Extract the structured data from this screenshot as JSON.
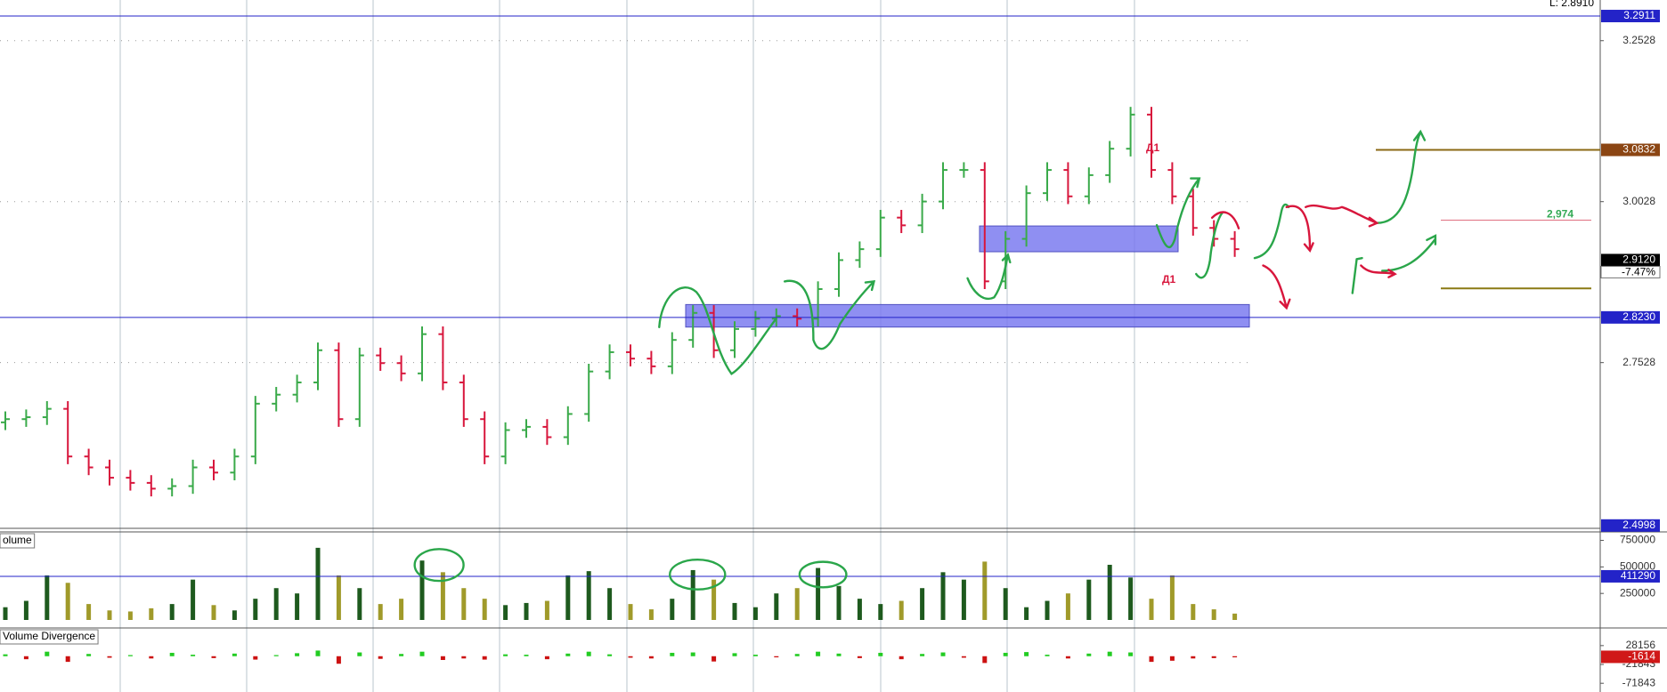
{
  "top_label": "L: 2.8910",
  "annotations": [
    "Д1",
    "Д1"
  ],
  "chart_data": [
    {
      "type": "ohlc",
      "open": [
        2.66,
        2.665,
        2.668,
        2.681,
        2.607,
        2.59,
        2.574,
        2.566,
        2.557,
        2.561,
        2.59,
        2.582,
        2.607,
        2.689,
        2.703,
        2.722,
        2.772,
        2.665,
        2.764,
        2.752,
        2.736,
        2.797,
        2.722,
        2.665,
        2.607,
        2.648,
        2.653,
        2.637,
        2.673,
        2.739,
        2.769,
        2.759,
        2.747,
        2.788,
        2.83,
        2.772,
        2.805,
        2.821,
        2.825,
        2.821,
        2.867,
        2.912,
        2.929,
        2.978,
        2.966,
        3.003,
        3.052,
        3.052,
        2.879,
        2.945,
        3.016,
        3.052,
        3.011,
        3.044,
        3.085,
        3.138,
        3.052,
        3.011,
        2.962,
        2.945
      ],
      "high": [
        2.677,
        2.68,
        2.693,
        2.693,
        2.619,
        2.602,
        2.586,
        2.578,
        2.573,
        2.602,
        2.602,
        2.619,
        2.701,
        2.715,
        2.734,
        2.784,
        2.784,
        2.776,
        2.776,
        2.764,
        2.809,
        2.809,
        2.734,
        2.677,
        2.66,
        2.665,
        2.665,
        2.685,
        2.751,
        2.781,
        2.781,
        2.771,
        2.8,
        2.842,
        2.842,
        2.817,
        2.833,
        2.837,
        2.837,
        2.879,
        2.924,
        2.941,
        2.99,
        2.99,
        3.015,
        3.064,
        3.064,
        3.064,
        2.957,
        3.028,
        3.064,
        3.064,
        3.056,
        3.097,
        3.15,
        3.15,
        3.064,
        3.023,
        2.974,
        2.957
      ],
      "low": [
        2.648,
        2.653,
        2.656,
        2.595,
        2.578,
        2.562,
        2.554,
        2.545,
        2.545,
        2.549,
        2.57,
        2.57,
        2.595,
        2.677,
        2.691,
        2.71,
        2.653,
        2.653,
        2.74,
        2.724,
        2.724,
        2.71,
        2.653,
        2.595,
        2.595,
        2.636,
        2.625,
        2.625,
        2.661,
        2.727,
        2.747,
        2.735,
        2.735,
        2.776,
        2.76,
        2.76,
        2.793,
        2.809,
        2.809,
        2.809,
        2.855,
        2.9,
        2.917,
        2.954,
        2.954,
        2.991,
        3.04,
        2.867,
        2.867,
        2.933,
        3.004,
        2.999,
        2.999,
        3.032,
        3.073,
        3.04,
        2.999,
        2.95,
        2.933,
        2.917
      ],
      "close": [
        2.665,
        2.668,
        2.681,
        2.607,
        2.59,
        2.574,
        2.566,
        2.557,
        2.561,
        2.59,
        2.582,
        2.607,
        2.689,
        2.703,
        2.722,
        2.772,
        2.665,
        2.764,
        2.752,
        2.736,
        2.797,
        2.722,
        2.665,
        2.607,
        2.648,
        2.653,
        2.637,
        2.673,
        2.739,
        2.769,
        2.759,
        2.747,
        2.788,
        2.83,
        2.772,
        2.805,
        2.821,
        2.825,
        2.821,
        2.867,
        2.912,
        2.929,
        2.978,
        2.966,
        3.003,
        3.052,
        3.052,
        2.879,
        2.945,
        3.016,
        3.052,
        3.011,
        3.044,
        3.085,
        3.138,
        3.052,
        3.011,
        2.962,
        2.945,
        2.929
      ],
      "up_color": "#3aaa4a",
      "down_color": "#d8163c",
      "ylim": [
        2.494,
        3.316
      ],
      "yticks": [
        3.2528,
        3.0028,
        2.7528
      ],
      "grid": true,
      "markers": [
        {
          "value": 3.2911,
          "color": "#2323c8",
          "line": "full"
        },
        {
          "value": 3.0832,
          "color": "#8b4513",
          "line": "partial",
          "line_color": "#8b6914"
        },
        {
          "value": 2.912,
          "label": "2.9120",
          "color": "#000000",
          "change_label": "-7.47%"
        },
        {
          "value": 2.823,
          "label": "2.8230",
          "color": "#2323c8",
          "line": "full"
        },
        {
          "value": 2.4998,
          "color": "#2323c8"
        }
      ],
      "levels": [
        {
          "value": 2.974,
          "label": "2,974",
          "color": "#e07080"
        },
        {
          "value": 2.868,
          "color": "#8b7a14"
        }
      ],
      "zones": [
        {
          "low": 2.808,
          "high": 2.843
        },
        {
          "low": 2.925,
          "high": 2.965
        }
      ]
    },
    {
      "type": "bar",
      "name": "olume",
      "values": [
        120000,
        180000,
        420000,
        350000,
        150000,
        90000,
        80000,
        110000,
        150000,
        380000,
        140000,
        90000,
        200000,
        300000,
        250000,
        680000,
        420000,
        300000,
        150000,
        200000,
        560000,
        450000,
        300000,
        200000,
        140000,
        160000,
        180000,
        420000,
        460000,
        300000,
        150000,
        100000,
        200000,
        470000,
        380000,
        160000,
        120000,
        250000,
        300000,
        490000,
        320000,
        200000,
        150000,
        180000,
        300000,
        450000,
        380000,
        550000,
        300000,
        120000,
        180000,
        250000,
        380000,
        520000,
        400000,
        200000,
        420000,
        150000,
        100000,
        60000
      ],
      "up_color": "#1e5a1e",
      "down_color": "#a09a2a",
      "ylim": [
        0,
        830000
      ],
      "yticks": [
        750000,
        500000,
        250000
      ],
      "markers": [
        {
          "value": 411290,
          "color": "#2323c8",
          "line": "full"
        }
      ]
    },
    {
      "type": "bar",
      "name": "Volume Divergence",
      "values": [
        5000,
        -8000,
        12000,
        -15000,
        6000,
        -4000,
        3000,
        -6000,
        9000,
        4000,
        -5000,
        7000,
        -9000,
        3000,
        8000,
        15000,
        -20000,
        10000,
        -7000,
        6000,
        12000,
        -10000,
        -6000,
        -9000,
        5000,
        4000,
        -8000,
        7000,
        12000,
        5000,
        -4000,
        -6000,
        9000,
        10000,
        -14000,
        8000,
        4000,
        -3000,
        6000,
        12000,
        7000,
        -5000,
        9000,
        -8000,
        6000,
        10000,
        -4000,
        -18000,
        9000,
        11000,
        4000,
        -6000,
        7000,
        12000,
        10000,
        -15000,
        -12000,
        -6000,
        -5000,
        -3000
      ],
      "up_color": "#22cc22",
      "down_color": "#cc1111",
      "ylim": [
        -95000,
        75000
      ],
      "yticks": [
        28156,
        -21843,
        -71843
      ],
      "markers": [
        {
          "value": -1614,
          "color": "#d01818"
        }
      ]
    }
  ]
}
